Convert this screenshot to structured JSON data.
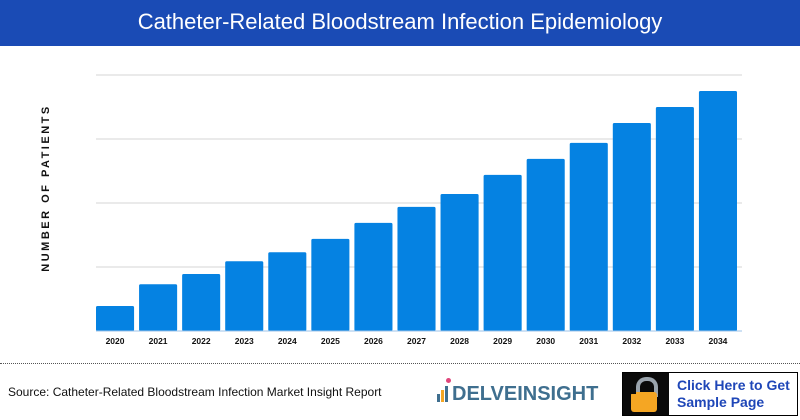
{
  "header": {
    "title": "Catheter-Related Bloodstream Infection Epidemiology"
  },
  "chart_data": {
    "type": "bar",
    "title": "Catheter-Related Bloodstream Infection Epidemiology",
    "xlabel": "",
    "ylabel": "NUMBER OF PATIENTS",
    "categories": [
      "2020",
      "2021",
      "2022",
      "2023",
      "2024",
      "2025",
      "2026",
      "2027",
      "2028",
      "2029",
      "2030",
      "2031",
      "2032",
      "2033",
      "2034"
    ],
    "values": [
      0.39,
      0.73,
      0.89,
      1.09,
      1.23,
      1.44,
      1.69,
      1.94,
      2.14,
      2.44,
      2.69,
      2.94,
      3.25,
      3.5,
      3.75
    ],
    "ylim": [
      0,
      4
    ],
    "y_tick_labels_shown": false,
    "grid": true,
    "bar_color": "#0582e2"
  },
  "footer": {
    "source": "Source: Catheter-Related Bloodstream Infection Market Insight Report",
    "logo_text": "DELVEINSIGHT",
    "cta_line1": "Click Here to Get",
    "cta_line2": "Sample Page",
    "cta_icon": "unlocked-padlock-icon"
  },
  "colors": {
    "header_bg": "#1a4bb5",
    "cta_text": "#1f47b8",
    "lock": "#f5a623"
  }
}
